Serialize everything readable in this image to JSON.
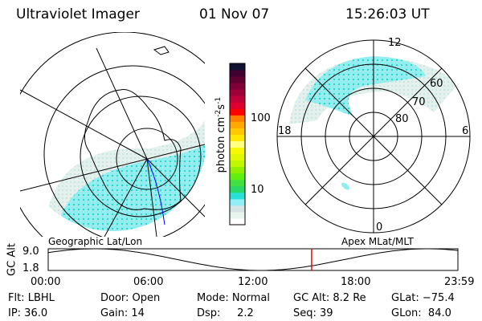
{
  "header": {
    "instrument": "Ultraviolet Imager",
    "date": "01 Nov 07",
    "time": "15:26:03 UT"
  },
  "colorbar": {
    "label": "photon cm-2s-1",
    "label_parts": {
      "base": "photon cm",
      "exp1": "-2",
      "mid": "s",
      "exp2": "-1"
    },
    "ticks": [
      "100",
      "10"
    ],
    "scale": "log",
    "colors": [
      "#ffffff",
      "#e8f4ee",
      "#d4e4e4",
      "#90eef4",
      "#28e0d8",
      "#28d868",
      "#40e040",
      "#60f010",
      "#90f000",
      "#c0f800",
      "#e0f800",
      "#f8f800",
      "#ffff80",
      "#ffe800",
      "#ffc800",
      "#ffa800",
      "#ff8000",
      "#ff0000",
      "#e00030",
      "#c00038",
      "#a00038",
      "#800038",
      "#600030",
      "#400030",
      "#101030"
    ]
  },
  "left_map": {
    "caption": "Geographic Lat/Lon"
  },
  "right_map": {
    "caption": "Apex MLat/MLT",
    "mlt_labels": [
      "12",
      "18",
      "6",
      "0"
    ],
    "lat_labels": [
      "60",
      "70",
      "80"
    ]
  },
  "orbit_plot": {
    "ylabel": "GC Alt",
    "yticks": [
      "9.0",
      "1.8"
    ],
    "xticks": [
      "00:00",
      "06:00",
      "12:00",
      "18:00",
      "23:59"
    ],
    "current_time_hours": 15.43,
    "marker_color": "#ff0000"
  },
  "info": {
    "row1": [
      "Flt: LBHL",
      "Door: Open",
      "Mode: Normal",
      "GC Alt: 8.2 Re",
      "GLat: −75.4"
    ],
    "row2": [
      "IP: 36.0",
      "Gain: 14",
      "Dsp:     2.2",
      "Seq: 39",
      "GLon:  84.0"
    ]
  }
}
